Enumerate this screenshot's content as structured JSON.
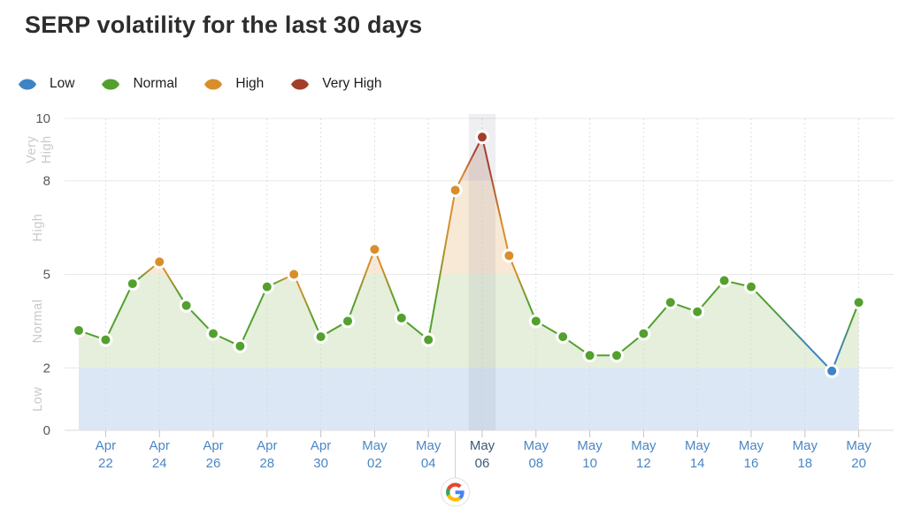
{
  "title": "SERP volatility for the last 30 days",
  "legend": {
    "items": [
      {
        "id": "low",
        "label": "Low",
        "color": "#3d83c5"
      },
      {
        "id": "normal",
        "label": "Normal",
        "color": "#53a02f"
      },
      {
        "id": "high",
        "label": "High",
        "color": "#d88e2b"
      },
      {
        "id": "very_high",
        "label": "Very High",
        "color": "#a33e2b"
      }
    ]
  },
  "colors": {
    "grid": "#e8e8e8",
    "axis_line": "#d8d8d8",
    "dashed_grid": "#d9d9d9",
    "tick": "#c4c4c4",
    "y_tick_text": "#58585c",
    "zone_label": "#c9c9c9",
    "x_label": "#4a86c5",
    "x_label_highlighted": "#3e5a78",
    "highlight_band": "#7d7d96",
    "annotation_line": "#cfcfcf",
    "level_fills": {
      "low": "#dbe7f4",
      "normal": "#e5efdb",
      "high": "#f8e9d6",
      "very_high": "#ecdbd4"
    },
    "google_logo": {
      "blue": "#4285F4",
      "red": "#EA4335",
      "yellow": "#FBBC05",
      "green": "#34A853"
    }
  },
  "chart_data": {
    "type": "line",
    "title": "SERP volatility for the last 30 days",
    "xlabel": "",
    "ylabel": "",
    "ylim": [
      0,
      10
    ],
    "y_ticks": [
      0,
      2,
      5,
      8,
      10
    ],
    "zones": [
      {
        "label": "Low",
        "from": 0,
        "to": 2
      },
      {
        "label": "Normal",
        "from": 2,
        "to": 5
      },
      {
        "label": "High",
        "from": 5,
        "to": 8
      },
      {
        "label": "Very High",
        "from": 8,
        "to": 10
      }
    ],
    "x_tick_dates": [
      "Apr 22",
      "Apr 24",
      "Apr 26",
      "Apr 28",
      "Apr 30",
      "May 02",
      "May 04",
      "May 06",
      "May 10",
      "May 12",
      "May 14",
      "May 16",
      "May 18",
      "May 20",
      "May 08"
    ],
    "highlighted_date": "May 06",
    "annotation": {
      "date": "May 05",
      "icon": "google-logo"
    },
    "legend_position": "top-left",
    "grid": "horizontal solid, vertical dashed at labeled dates",
    "points": [
      {
        "date": "Apr 21",
        "value": 3.2,
        "level": "normal"
      },
      {
        "date": "Apr 22",
        "value": 2.9,
        "level": "normal"
      },
      {
        "date": "Apr 23",
        "value": 4.7,
        "level": "normal"
      },
      {
        "date": "Apr 24",
        "value": 5.4,
        "level": "high"
      },
      {
        "date": "Apr 25",
        "value": 4.0,
        "level": "normal"
      },
      {
        "date": "Apr 26",
        "value": 3.1,
        "level": "normal"
      },
      {
        "date": "Apr 27",
        "value": 2.7,
        "level": "normal"
      },
      {
        "date": "Apr 28",
        "value": 4.6,
        "level": "normal"
      },
      {
        "date": "Apr 29",
        "value": 5.0,
        "level": "high"
      },
      {
        "date": "Apr 30",
        "value": 3.0,
        "level": "normal"
      },
      {
        "date": "May 01",
        "value": 3.5,
        "level": "normal"
      },
      {
        "date": "May 02",
        "value": 5.8,
        "level": "high"
      },
      {
        "date": "May 03",
        "value": 3.6,
        "level": "normal"
      },
      {
        "date": "May 04",
        "value": 2.9,
        "level": "normal"
      },
      {
        "date": "May 05",
        "value": 7.7,
        "level": "high"
      },
      {
        "date": "May 06",
        "value": 9.4,
        "level": "very_high"
      },
      {
        "date": "May 07",
        "value": 5.6,
        "level": "high"
      },
      {
        "date": "May 08",
        "value": 3.5,
        "level": "normal"
      },
      {
        "date": "May 09",
        "value": 3.0,
        "level": "normal"
      },
      {
        "date": "May 10",
        "value": 2.4,
        "level": "normal"
      },
      {
        "date": "May 11",
        "value": 2.4,
        "level": "normal"
      },
      {
        "date": "May 12",
        "value": 3.1,
        "level": "normal"
      },
      {
        "date": "May 13",
        "value": 4.1,
        "level": "normal"
      },
      {
        "date": "May 14",
        "value": 3.8,
        "level": "normal"
      },
      {
        "date": "May 15",
        "value": 4.8,
        "level": "normal"
      },
      {
        "date": "May 16",
        "value": 4.6,
        "level": "normal"
      },
      {
        "date": "May 17",
        "value": null,
        "level": null
      },
      {
        "date": "May 18",
        "value": null,
        "level": null
      },
      {
        "date": "May 19",
        "value": 1.9,
        "level": "low"
      },
      {
        "date": "May 20",
        "value": 4.1,
        "level": "normal"
      }
    ]
  }
}
